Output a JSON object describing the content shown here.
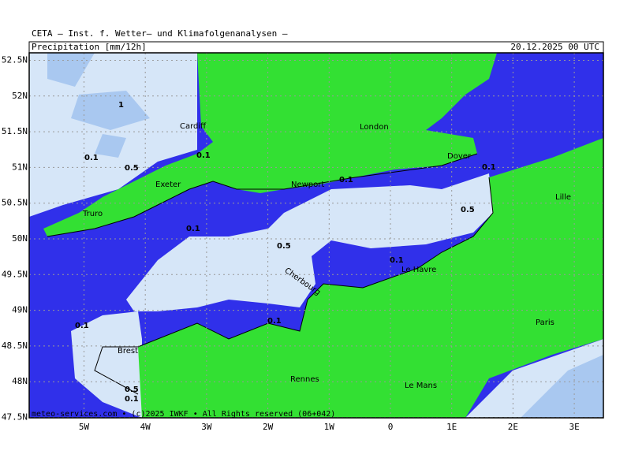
{
  "header": {
    "title": "CETA — Inst. f. Wetter— und Klimafolgenanalysen —",
    "field": "Precipitation [mm/12h]",
    "time": "20.12.2025 00 UTC"
  },
  "lat_ticks": [
    {
      "value": 52.5,
      "label": "52.5N"
    },
    {
      "value": 52,
      "label": "52N"
    },
    {
      "value": 51.5,
      "label": "51.5N"
    },
    {
      "value": 51,
      "label": "51N"
    },
    {
      "value": 50.5,
      "label": "50.5N"
    },
    {
      "value": 50,
      "label": "50N"
    },
    {
      "value": 49.5,
      "label": "49.5N"
    },
    {
      "value": 49,
      "label": "49N"
    },
    {
      "value": 48.5,
      "label": "48.5N"
    },
    {
      "value": 48,
      "label": "48N"
    },
    {
      "value": 47.5,
      "label": "47.5N"
    }
  ],
  "lon_ticks": [
    {
      "value": -5,
      "label": "5W"
    },
    {
      "value": -4,
      "label": "4W"
    },
    {
      "value": -3,
      "label": "3W"
    },
    {
      "value": -2,
      "label": "2W"
    },
    {
      "value": -1,
      "label": "1W"
    },
    {
      "value": 0,
      "label": "0"
    },
    {
      "value": 1,
      "label": "1E"
    },
    {
      "value": 2,
      "label": "2E"
    },
    {
      "value": 3,
      "label": "3E"
    }
  ],
  "cities": [
    "Cardiff",
    "London",
    "Dover",
    "Exeter",
    "Newport",
    "Truro",
    "Lille",
    "Cherbourg",
    "Le Havre",
    "Paris",
    "Brest",
    "Rennes",
    "Le Mans"
  ],
  "contour_labels": [
    "1",
    "0.1",
    "0.5",
    "0.1",
    "0.1",
    "0.1",
    "0.5",
    "0.1",
    "0.5",
    "0.1",
    "0.1",
    "0.1",
    "0.5",
    "0.1"
  ],
  "footer": "meteo-services.com • (c)2025 IWKF • All Rights reserved (06+042)"
}
